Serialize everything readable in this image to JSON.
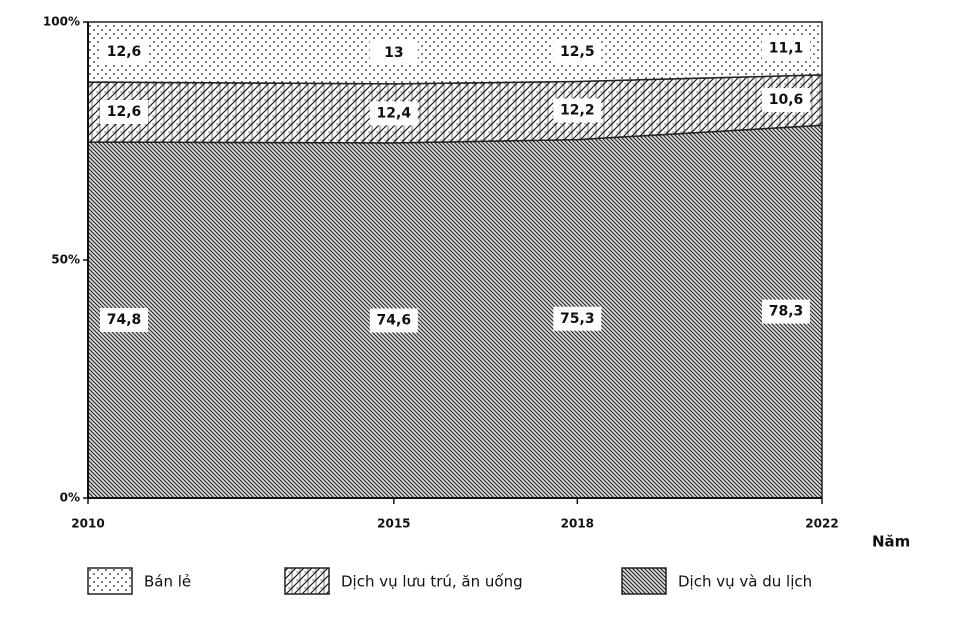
{
  "chart_data": {
    "type": "area",
    "stacked": true,
    "x": [
      2010,
      2015,
      2018,
      2022
    ],
    "xlim": [
      2010,
      2022
    ],
    "xticks": [
      2010,
      2015,
      2018,
      2022
    ],
    "x_label": "Năm",
    "ylim": [
      0,
      100
    ],
    "yticks": [
      {
        "value": 0,
        "label": "0%"
      },
      {
        "value": 50,
        "label": "50%"
      },
      {
        "value": 100,
        "label": "100%"
      }
    ],
    "series": [
      {
        "name": "Bán lẻ",
        "color": "#222222",
        "pattern": "dots",
        "values": [
          12.6,
          13,
          12.5,
          11.1
        ],
        "value_labels": [
          "12,6",
          "13",
          "12,5",
          "11,1"
        ]
      },
      {
        "name": "Dịch vụ lưu trú, ăn uống",
        "color": "#222222",
        "pattern": "crosshatch",
        "values": [
          12.6,
          12.4,
          12.2,
          10.6
        ],
        "value_labels": [
          "12,6",
          "12,4",
          "12,2",
          "10,6"
        ]
      },
      {
        "name": "Dịch vụ và du lịch",
        "color": "#222222",
        "pattern": "diagonal",
        "values": [
          74.8,
          74.6,
          75.3,
          78.3
        ],
        "value_labels": [
          "74,8",
          "74,6",
          "75,3",
          "78,3"
        ]
      }
    ]
  }
}
